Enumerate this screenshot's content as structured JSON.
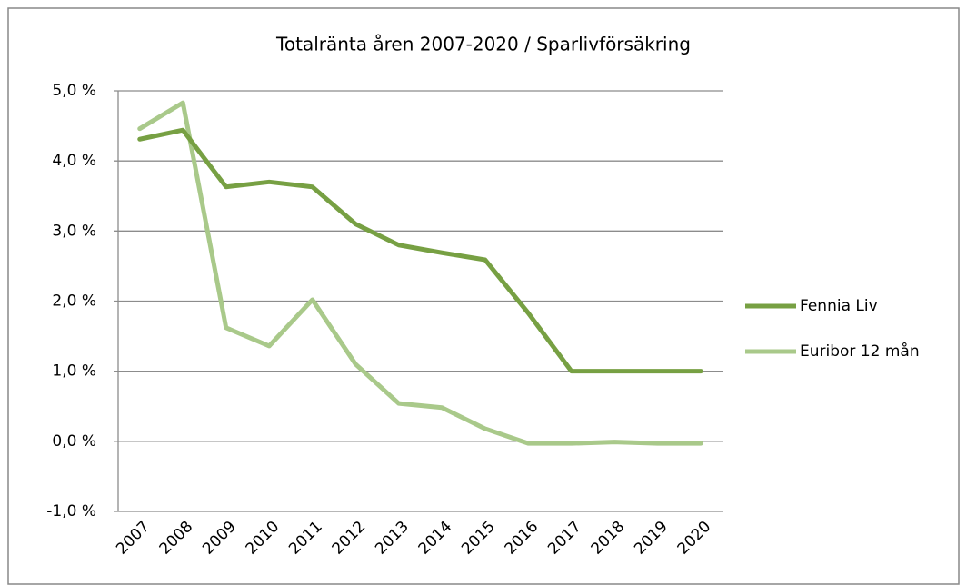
{
  "chart_data": {
    "type": "line",
    "title": "Totalränta åren 2007-2020 / Sparlivförsäkring",
    "categories": [
      "2007",
      "2008",
      "2009",
      "2010",
      "2011",
      "2012",
      "2013",
      "2014",
      "2015",
      "2016",
      "2017",
      "2018",
      "2019",
      "2020"
    ],
    "series": [
      {
        "name": "Fennia Liv",
        "color": "#77a043",
        "values": [
          4.31,
          4.44,
          3.63,
          3.7,
          3.63,
          3.1,
          2.8,
          2.69,
          2.59,
          1.83,
          1.0,
          1.0,
          1.0,
          1.0
        ]
      },
      {
        "name": "Euribor 12 mån",
        "color": "#a9c98a",
        "values": [
          4.46,
          4.83,
          1.62,
          1.36,
          2.02,
          1.1,
          0.54,
          0.48,
          0.18,
          -0.03,
          -0.03,
          -0.01,
          -0.03,
          -0.03
        ]
      }
    ],
    "ylim": [
      -1,
      5
    ],
    "yticks": [
      {
        "value": -1,
        "label": "-1,0 %"
      },
      {
        "value": 0,
        "label": "0,0 %"
      },
      {
        "value": 1,
        "label": "1,0 %"
      },
      {
        "value": 2,
        "label": "2,0 %"
      },
      {
        "value": 3,
        "label": "3,0 %"
      },
      {
        "value": 4,
        "label": "4,0 %"
      },
      {
        "value": 5,
        "label": "5,0 %"
      }
    ],
    "grid": true,
    "legend": "right"
  }
}
